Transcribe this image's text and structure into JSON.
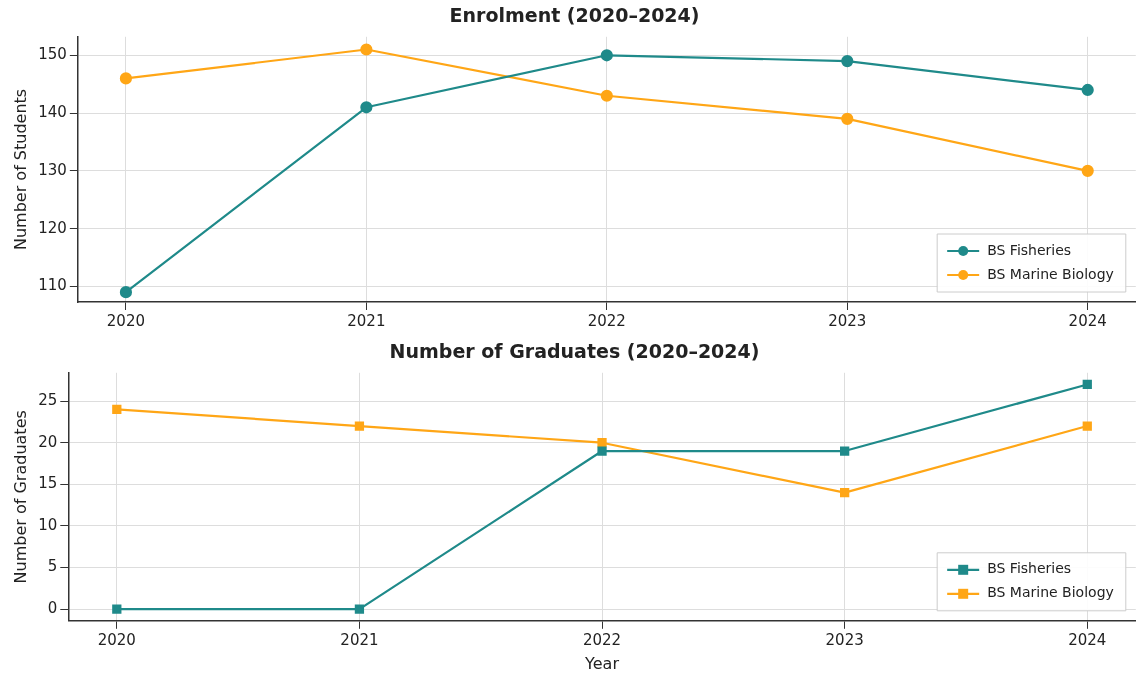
{
  "chart_data": [
    {
      "type": "line",
      "title": "Enrolment (2020–2024)",
      "ylabel": "Number of Students",
      "x": [
        2020,
        2021,
        2022,
        2023,
        2024
      ],
      "xlim": [
        2019.8,
        2024.2
      ],
      "xticks": [
        2020,
        2021,
        2022,
        2023,
        2024
      ],
      "ylim": [
        107.3,
        153.2
      ],
      "yticks": [
        110,
        120,
        130,
        140,
        150
      ],
      "grid": true,
      "legend": "bottom right",
      "marker": "circle",
      "line_style": "solid",
      "series": [
        {
          "name": "BS Fisheries",
          "color": "#1f8a8a",
          "values": [
            109,
            141,
            150,
            149,
            144
          ]
        },
        {
          "name": "BS Marine Biology",
          "color": "#ffa616",
          "values": [
            146,
            151,
            143,
            139,
            130
          ]
        }
      ]
    },
    {
      "type": "line",
      "title": "Number of Graduates (2020–2024)",
      "xlabel": "Year",
      "ylabel": "Number of Graduates",
      "x": [
        2020,
        2021,
        2022,
        2023,
        2024
      ],
      "xlim": [
        2019.8,
        2024.2
      ],
      "xticks": [
        2020,
        2021,
        2022,
        2023,
        2024
      ],
      "ylim": [
        -1.4,
        28.4
      ],
      "yticks": [
        0,
        5,
        10,
        15,
        20,
        25
      ],
      "grid": true,
      "legend": "bottom right",
      "marker": "square",
      "line_style": "solid",
      "series": [
        {
          "name": "BS Fisheries",
          "color": "#1f8a8a",
          "values": [
            0,
            0,
            19,
            19,
            27
          ]
        },
        {
          "name": "BS Marine Biology",
          "color": "#ffa616",
          "values": [
            24,
            22,
            20,
            14,
            22
          ]
        }
      ]
    }
  ]
}
